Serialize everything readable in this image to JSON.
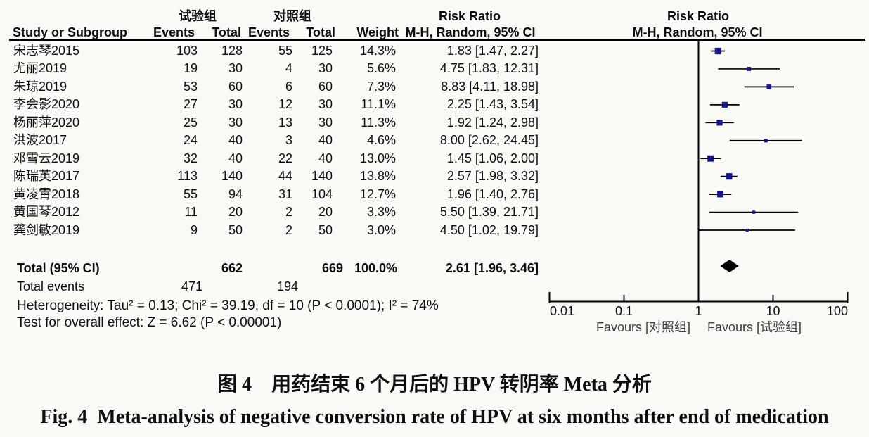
{
  "chart_data": {
    "type": "forest",
    "x_scale": "log",
    "effect_title": "Risk Ratio",
    "effect_subtitle": "M-H, Random, 95% CI",
    "groups": {
      "experimental": "试验组",
      "control": "对照组"
    },
    "columns": {
      "study": "Study or Subgroup",
      "events": "Events",
      "total": "Total",
      "weight": "Weight"
    },
    "studies": [
      {
        "name": "宋志琴2015",
        "events_exp": 103,
        "total_exp": 128,
        "events_ctrl": 55,
        "total_ctrl": 125,
        "weight_pct": 14.3,
        "rr": 1.83,
        "ci_low": 1.47,
        "ci_high": 2.27
      },
      {
        "name": "尤丽2019",
        "events_exp": 19,
        "total_exp": 30,
        "events_ctrl": 4,
        "total_ctrl": 30,
        "weight_pct": 5.6,
        "rr": 4.75,
        "ci_low": 1.83,
        "ci_high": 12.31
      },
      {
        "name": "朱琼2019",
        "events_exp": 53,
        "total_exp": 60,
        "events_ctrl": 6,
        "total_ctrl": 60,
        "weight_pct": 7.3,
        "rr": 8.83,
        "ci_low": 4.11,
        "ci_high": 18.98
      },
      {
        "name": "李会影2020",
        "events_exp": 27,
        "total_exp": 30,
        "events_ctrl": 12,
        "total_ctrl": 30,
        "weight_pct": 11.1,
        "rr": 2.25,
        "ci_low": 1.43,
        "ci_high": 3.54
      },
      {
        "name": "杨丽萍2020",
        "events_exp": 25,
        "total_exp": 30,
        "events_ctrl": 13,
        "total_ctrl": 30,
        "weight_pct": 11.3,
        "rr": 1.92,
        "ci_low": 1.24,
        "ci_high": 2.98
      },
      {
        "name": "洪波2017",
        "events_exp": 24,
        "total_exp": 40,
        "events_ctrl": 3,
        "total_ctrl": 40,
        "weight_pct": 4.6,
        "rr": 8.0,
        "ci_low": 2.62,
        "ci_high": 24.45
      },
      {
        "name": "邓雪云2019",
        "events_exp": 32,
        "total_exp": 40,
        "events_ctrl": 22,
        "total_ctrl": 40,
        "weight_pct": 13.0,
        "rr": 1.45,
        "ci_low": 1.06,
        "ci_high": 2.0
      },
      {
        "name": "陈瑞英2017",
        "events_exp": 113,
        "total_exp": 140,
        "events_ctrl": 44,
        "total_ctrl": 140,
        "weight_pct": 13.8,
        "rr": 2.57,
        "ci_low": 1.98,
        "ci_high": 3.32
      },
      {
        "name": "黄凌霄2018",
        "events_exp": 55,
        "total_exp": 94,
        "events_ctrl": 31,
        "total_ctrl": 104,
        "weight_pct": 12.7,
        "rr": 1.96,
        "ci_low": 1.4,
        "ci_high": 2.76
      },
      {
        "name": "黄国琴2012",
        "events_exp": 11,
        "total_exp": 20,
        "events_ctrl": 2,
        "total_ctrl": 20,
        "weight_pct": 3.3,
        "rr": 5.5,
        "ci_low": 1.39,
        "ci_high": 21.71
      },
      {
        "name": "龚剑敏2019",
        "events_exp": 9,
        "total_exp": 50,
        "events_ctrl": 2,
        "total_ctrl": 50,
        "weight_pct": 3.0,
        "rr": 4.5,
        "ci_low": 1.02,
        "ci_high": 19.79
      }
    ],
    "total": {
      "label": "Total (95% CI)",
      "total_exp": 662,
      "total_ctrl": 669,
      "weight_pct": 100.0,
      "rr": 2.61,
      "ci_low": 1.96,
      "ci_high": 3.46
    },
    "total_events": {
      "label": "Total events",
      "events_exp": 471,
      "events_ctrl": 194
    },
    "heterogeneity": "Heterogeneity: Tau² = 0.13; Chi² = 39.19, df = 10 (P < 0.0001); I² = 74%",
    "overall_effect": "Test for overall effect: Z = 6.62 (P < 0.00001)",
    "axis_ticks": [
      "0.01",
      "0.1",
      "1",
      "10",
      "100"
    ],
    "favours_left": "Favours [对照组]",
    "favours_right": "Favours [试验组]",
    "marker_color": "#16168a"
  },
  "caption": {
    "zh": "图 4　用药结束 6 个月后的 HPV 转阴率 Meta 分析",
    "en": "Fig. 4  Meta-analysis of negative conversion rate of HPV at six months after end of medication"
  }
}
